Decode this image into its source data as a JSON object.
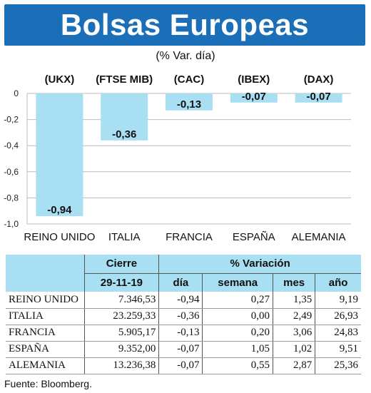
{
  "title": "Bolsas Europeas",
  "subtitle": "(% Var. día)",
  "chart_data": {
    "type": "bar",
    "categories": [
      "REINO UNIDO",
      "ITALIA",
      "FRANCIA",
      "ESPAÑA",
      "ALEMANIA"
    ],
    "indices": [
      "(UKX)",
      "(FTSE MIB)",
      "(CAC)",
      "(IBEX)",
      "(DAX)"
    ],
    "values": [
      -0.94,
      -0.36,
      -0.13,
      -0.07,
      -0.07
    ],
    "value_labels": [
      "-0,94",
      "-0,36",
      "-0,13",
      "-0,07",
      "-0,07"
    ],
    "ylim": [
      -1.0,
      0
    ],
    "yticks": [
      "0",
      "-0,2",
      "-0,4",
      "-0,6",
      "-0,8",
      "-1,0"
    ],
    "yticks_values": [
      0,
      -0.2,
      -0.4,
      -0.6,
      -0.8,
      -1.0
    ],
    "grid": true,
    "bar_color": "#a9dff2"
  },
  "table": {
    "group_headers": {
      "cierre": "Cierre",
      "variacion": "% Variación"
    },
    "col_headers": {
      "date": "29-11-19",
      "dia": "día",
      "semana": "semana",
      "mes": "mes",
      "ano": "año"
    },
    "rows": [
      {
        "name": "REINO UNIDO",
        "cierre": "7.346,53",
        "dia": "-0,94",
        "semana": "0,27",
        "mes": "1,35",
        "ano": "9,19"
      },
      {
        "name": "ITALIA",
        "cierre": "23.259,33",
        "dia": "-0,36",
        "semana": "0,00",
        "mes": "2,49",
        "ano": "26,93"
      },
      {
        "name": "FRANCIA",
        "cierre": "5.905,17",
        "dia": "-0,13",
        "semana": "0,20",
        "mes": "3,06",
        "ano": "24,83"
      },
      {
        "name": "ESPAÑA",
        "cierre": "9.352,00",
        "dia": "-0,07",
        "semana": "1,05",
        "mes": "1,02",
        "ano": "9,51"
      },
      {
        "name": "ALEMANIA",
        "cierre": "13.236,38",
        "dia": "-0,07",
        "semana": "0,55",
        "mes": "2,87",
        "ano": "25,36"
      }
    ]
  },
  "source": "Fuente: Bloomberg.",
  "colors": {
    "header_bg": "#1a6fb8",
    "accent_light": "#a9dff2"
  }
}
